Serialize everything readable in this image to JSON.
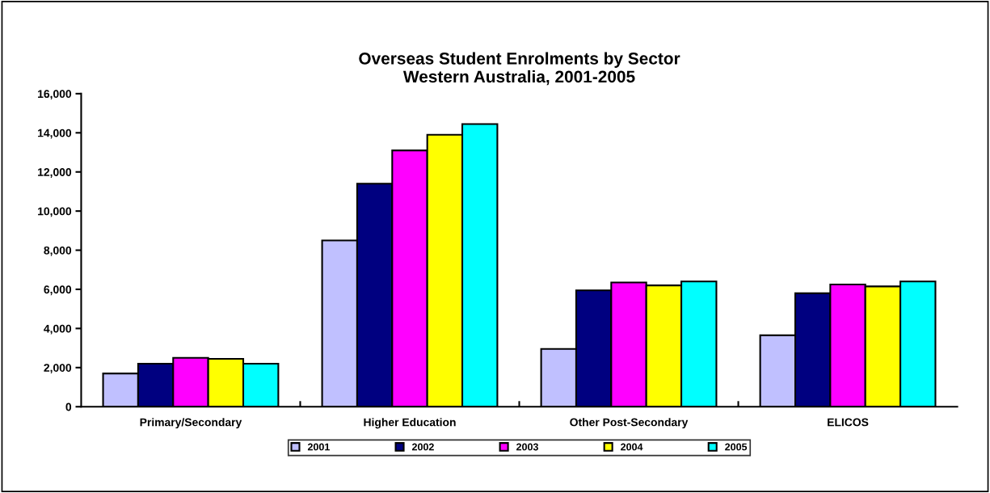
{
  "chart_data": {
    "type": "bar",
    "title": "Overseas Student Enrolments by Sector\nWestern Australia, 2001-2005",
    "categories": [
      "Primary/Secondary",
      "Higher Education",
      "Other Post-Secondary",
      "ELICOS"
    ],
    "series": [
      {
        "name": "2001",
        "color": "#c0c0ff",
        "values": [
          1700,
          8500,
          2950,
          3650
        ]
      },
      {
        "name": "2002",
        "color": "#000080",
        "values": [
          2200,
          11400,
          5950,
          5800
        ]
      },
      {
        "name": "2003",
        "color": "#ff00ff",
        "values": [
          2500,
          13100,
          6350,
          6250
        ]
      },
      {
        "name": "2004",
        "color": "#ffff00",
        "values": [
          2450,
          13900,
          6200,
          6150
        ]
      },
      {
        "name": "2005",
        "color": "#00ffff",
        "values": [
          2200,
          14450,
          6400,
          6400
        ]
      }
    ],
    "ylim": [
      0,
      16000
    ],
    "yticks": [
      {
        "value": 0,
        "label": "0"
      },
      {
        "value": 2000,
        "label": "2,000"
      },
      {
        "value": 4000,
        "label": "4,000"
      },
      {
        "value": 6000,
        "label": "6,000"
      },
      {
        "value": 8000,
        "label": "8,000"
      },
      {
        "value": 10000,
        "label": "10,000"
      },
      {
        "value": 12000,
        "label": "12,000"
      },
      {
        "value": 14000,
        "label": "14,000"
      },
      {
        "value": 16000,
        "label": "16,000"
      }
    ],
    "grid": false,
    "legend": "bottom"
  }
}
